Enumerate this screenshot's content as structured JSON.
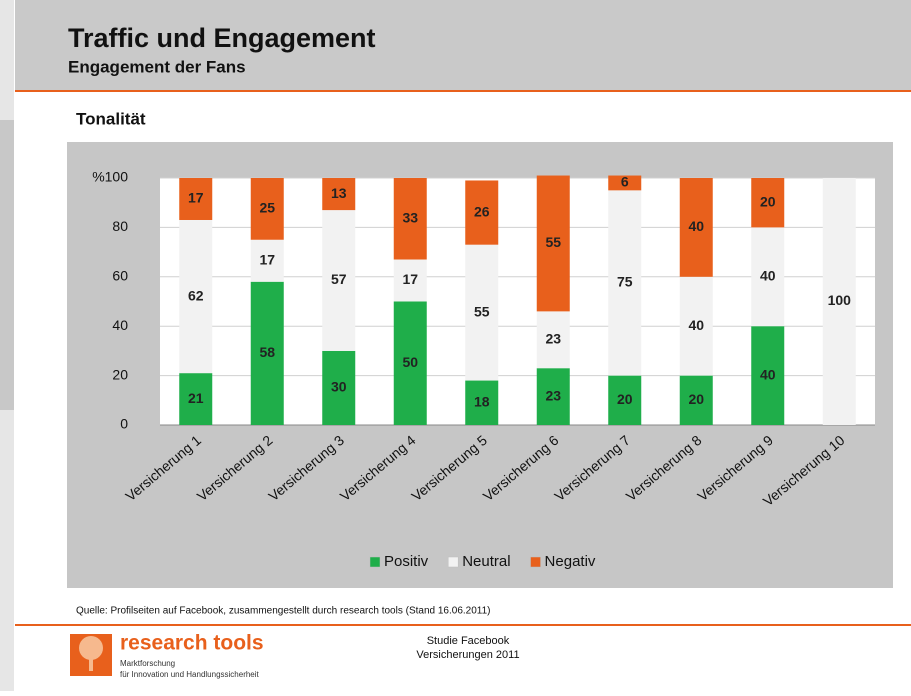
{
  "header": {
    "title": "Traffic und Engagement",
    "subtitle": "Engagement der Fans"
  },
  "section_title": "Tonalität",
  "chart_data": {
    "type": "stacked_bar",
    "categories": [
      "Versicherung 1",
      "Versicherung 2",
      "Versicherung 3",
      "Versicherung 4",
      "Versicherung 5",
      "Versicherung 6",
      "Versicherung 7",
      "Versicherung 8",
      "Versicherung 9",
      "Versicherung 10"
    ],
    "series": [
      {
        "name": "Positiv",
        "color": "#1fae4a",
        "values": [
          21,
          58,
          30,
          50,
          18,
          23,
          20,
          20,
          40,
          null
        ]
      },
      {
        "name": "Neutral",
        "color": "#f2f2f2",
        "values": [
          62,
          17,
          57,
          17,
          55,
          23,
          75,
          40,
          40,
          100
        ]
      },
      {
        "name": "Negativ",
        "color": "#e8601c",
        "values": [
          17,
          25,
          13,
          33,
          26,
          55,
          6,
          40,
          20,
          null
        ]
      }
    ],
    "ylim": [
      0,
      100
    ],
    "yticks": [
      0,
      20,
      40,
      60,
      80,
      {
        "value": 100,
        "label": "%100"
      }
    ],
    "grid": true,
    "legend": "bottom"
  },
  "source": "Quelle: Profilseiten auf Facebook, zusammengestellt durch research tools (Stand 16.06.2011)",
  "footer": {
    "brand": "research tools",
    "tagline1": "Marktforschung",
    "tagline2": "für Innovation und Handlungssicherheit",
    "study1": "Studie Facebook",
    "study2": "Versicherungen 2011"
  }
}
